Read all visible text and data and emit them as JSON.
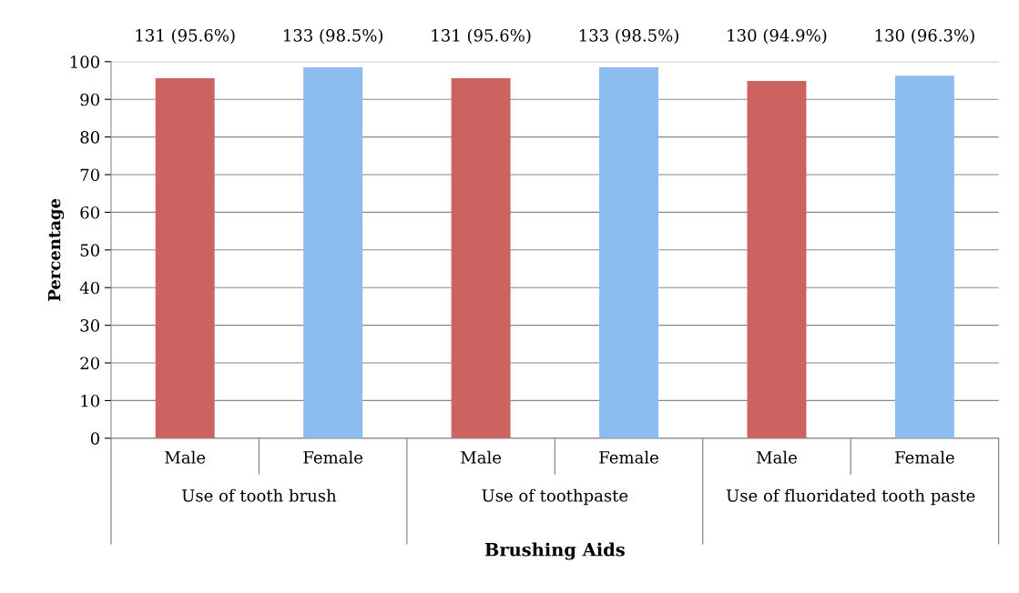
{
  "chart_data": {
    "type": "bar",
    "xlabel": "Brushing Aids",
    "ylabel": "Percentage",
    "categories": [
      "Male",
      "Female",
      "Male",
      "Female",
      "Male",
      "Female"
    ],
    "values": [
      95.6,
      98.5,
      95.6,
      98.5,
      94.9,
      96.3
    ],
    "colors": [
      "#cd6360",
      "#8cbcf0",
      "#cd6360",
      "#8cbcf0",
      "#cd6360",
      "#8cbcf0"
    ],
    "value_labels": [
      "131 (95.6%)",
      "133 (98.5%)",
      "131 (95.6%)",
      "133 (98.5%)",
      "130 (94.9%)",
      "130 (96.3%)"
    ],
    "annotations": [
      "Use of tooth brush",
      "Use of toothpaste",
      "Use of fluoridated tooth paste"
    ],
    "ylim": [
      0,
      100
    ],
    "yticks": [
      0,
      10,
      20,
      30,
      40,
      50,
      60,
      70,
      80,
      90,
      100
    ],
    "grid": "y",
    "legend": false
  }
}
